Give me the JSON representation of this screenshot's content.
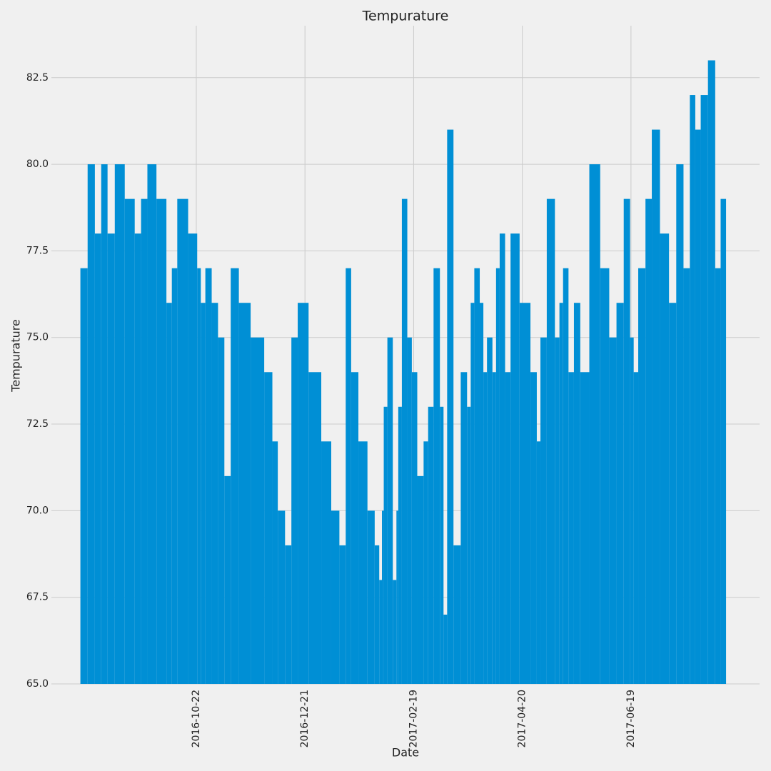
{
  "chart_data": {
    "type": "bar",
    "title": "Tempurature",
    "xlabel": "Date",
    "ylabel": "Tempurature",
    "color": "#008fd5",
    "grid": true,
    "x": [
      "2016-08-21",
      "2016-08-25",
      "2016-08-29",
      "2016-09-01",
      "2016-09-05",
      "2016-09-09",
      "2016-09-16",
      "2016-09-20",
      "2016-09-23",
      "2016-09-27",
      "2016-10-03",
      "2016-10-08",
      "2016-10-09",
      "2016-10-14",
      "2016-10-21",
      "2016-10-24",
      "2016-10-25",
      "2016-10-29",
      "2016-11-01",
      "2016-11-05",
      "2016-11-08",
      "2016-11-12",
      "2016-11-17",
      "2016-11-25",
      "2016-12-02",
      "2016-12-04",
      "2016-12-08",
      "2016-12-12",
      "2016-12-15",
      "2016-12-19",
      "2016-12-27",
      "2017-01-02",
      "2017-01-07",
      "2017-01-11",
      "2017-01-14",
      "2017-01-17",
      "2017-01-22",
      "2017-01-27",
      "2017-01-30",
      "2017-02-01",
      "2017-02-02",
      "2017-02-03",
      "2017-02-06",
      "2017-02-09",
      "2017-02-10",
      "2017-02-11",
      "2017-02-14",
      "2017-02-17",
      "2017-02-19",
      "2017-02-23",
      "2017-02-26",
      "2017-02-28",
      "2017-03-04",
      "2017-03-07",
      "2017-03-08",
      "2017-03-11",
      "2017-03-15",
      "2017-03-19",
      "2017-03-22",
      "2017-03-23",
      "2017-03-26",
      "2017-03-29",
      "2017-03-30",
      "2017-04-02",
      "2017-04-05",
      "2017-04-06",
      "2017-04-09",
      "2017-04-12",
      "2017-04-15",
      "2017-04-22",
      "2017-04-27",
      "2017-04-29",
      "2017-05-01",
      "2017-05-06",
      "2017-05-10",
      "2017-05-11",
      "2017-05-14",
      "2017-05-17",
      "2017-05-20",
      "2017-05-24",
      "2017-05-30",
      "2017-06-05",
      "2017-06-09",
      "2017-06-13",
      "2017-06-17",
      "2017-06-20",
      "2017-06-21",
      "2017-06-25",
      "2017-06-29",
      "2017-07-02",
      "2017-07-08",
      "2017-07-12",
      "2017-07-16",
      "2017-07-20",
      "2017-07-23",
      "2017-07-26",
      "2017-07-29",
      "2017-08-03",
      "2017-08-06",
      "2017-08-09"
    ],
    "values": [
      77,
      80,
      78,
      80,
      78,
      80,
      79,
      78,
      79,
      80,
      79,
      76,
      77,
      79,
      78,
      77,
      76,
      77,
      76,
      75,
      71,
      77,
      76,
      75,
      74,
      72,
      70,
      69,
      75,
      76,
      74,
      72,
      70,
      69,
      77,
      74,
      72,
      70,
      69,
      68,
      70,
      73,
      75,
      68,
      70,
      73,
      79,
      75,
      74,
      71,
      72,
      73,
      77,
      73,
      67,
      81,
      69,
      74,
      73,
      76,
      77,
      76,
      74,
      75,
      74,
      77,
      78,
      74,
      78,
      76,
      74,
      72,
      75,
      79,
      75,
      76,
      77,
      74,
      76,
      74,
      80,
      77,
      75,
      76,
      79,
      75,
      74,
      77,
      79,
      81,
      78,
      76,
      80,
      77,
      82,
      81,
      82,
      83,
      77,
      79
    ],
    "xlim": [
      "2016-08-03",
      "2017-08-29"
    ],
    "xticks": [
      "2016-10-22",
      "2016-12-21",
      "2017-02-19",
      "2017-04-20",
      "2017-06-19"
    ],
    "ylim": [
      65,
      84
    ],
    "yticks": [
      {
        "value": 65,
        "label": "65.0"
      },
      {
        "value": 67.5,
        "label": "67.5"
      },
      {
        "value": 70,
        "label": "70.0"
      },
      {
        "value": 72.5,
        "label": "72.5"
      },
      {
        "value": 75,
        "label": "75.0"
      },
      {
        "value": 77.5,
        "label": "77.5"
      },
      {
        "value": 80,
        "label": "80.0"
      },
      {
        "value": 82.5,
        "label": "82.5"
      }
    ]
  }
}
